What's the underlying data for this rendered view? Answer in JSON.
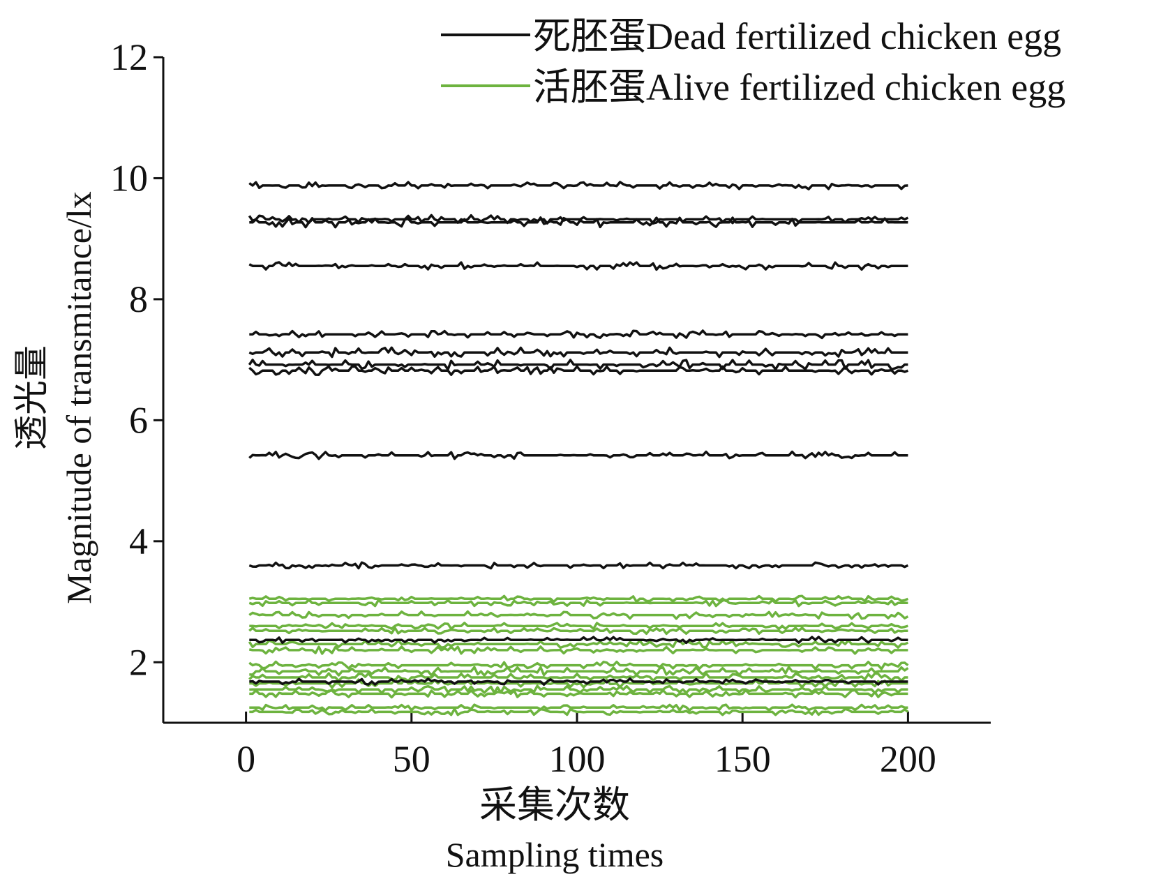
{
  "chart_data": {
    "type": "line",
    "title": "",
    "xlabel_zh": "采集次数",
    "xlabel": "Sampling times",
    "ylabel_zh": "透光量",
    "ylabel": "Magnitude of transmitance/lx",
    "xlim": [
      -25,
      225
    ],
    "ylim": [
      1,
      12
    ],
    "x_ticks": [
      0,
      50,
      100,
      150,
      200
    ],
    "y_ticks": [
      2,
      4,
      6,
      8,
      10,
      12
    ],
    "x_tick_labels": [
      "0",
      "50",
      "100",
      "150",
      "200"
    ],
    "y_tick_labels": [
      "2",
      "4",
      "6",
      "8",
      "10",
      "12"
    ],
    "x_range": [
      1,
      200
    ],
    "grid": false,
    "legend_position": "top-right",
    "legend": [
      {
        "label": "死胚蛋Dead fertilized chicken egg",
        "color": "#111111"
      },
      {
        "label": "活胚蛋Alive fertilized chicken egg",
        "color": "#6db33f"
      }
    ],
    "series": [
      {
        "group": "dead",
        "color": "#111111",
        "level": 9.88,
        "noise": 0.06
      },
      {
        "group": "dead",
        "color": "#111111",
        "level": 9.32,
        "noise": 0.07
      },
      {
        "group": "dead",
        "color": "#111111",
        "level": 9.27,
        "noise": 0.08
      },
      {
        "group": "dead",
        "color": "#111111",
        "level": 8.55,
        "noise": 0.06
      },
      {
        "group": "dead",
        "color": "#111111",
        "level": 7.42,
        "noise": 0.06
      },
      {
        "group": "dead",
        "color": "#111111",
        "level": 7.12,
        "noise": 0.08
      },
      {
        "group": "dead",
        "color": "#111111",
        "level": 6.92,
        "noise": 0.08
      },
      {
        "group": "dead",
        "color": "#111111",
        "level": 6.82,
        "noise": 0.07
      },
      {
        "group": "dead",
        "color": "#111111",
        "level": 5.42,
        "noise": 0.06
      },
      {
        "group": "dead",
        "color": "#111111",
        "level": 3.6,
        "noise": 0.05
      },
      {
        "group": "dead",
        "color": "#111111",
        "level": 2.37,
        "noise": 0.05
      },
      {
        "group": "dead",
        "color": "#111111",
        "level": 1.68,
        "noise": 0.05
      },
      {
        "group": "alive",
        "color": "#6db33f",
        "level": 3.05,
        "noise": 0.05
      },
      {
        "group": "alive",
        "color": "#6db33f",
        "level": 2.98,
        "noise": 0.05
      },
      {
        "group": "alive",
        "color": "#6db33f",
        "level": 2.78,
        "noise": 0.06
      },
      {
        "group": "alive",
        "color": "#6db33f",
        "level": 2.6,
        "noise": 0.05
      },
      {
        "group": "alive",
        "color": "#6db33f",
        "level": 2.52,
        "noise": 0.05
      },
      {
        "group": "alive",
        "color": "#6db33f",
        "level": 2.3,
        "noise": 0.06
      },
      {
        "group": "alive",
        "color": "#6db33f",
        "level": 2.2,
        "noise": 0.06
      },
      {
        "group": "alive",
        "color": "#6db33f",
        "level": 1.95,
        "noise": 0.06
      },
      {
        "group": "alive",
        "color": "#6db33f",
        "level": 1.85,
        "noise": 0.07
      },
      {
        "group": "alive",
        "color": "#6db33f",
        "level": 1.75,
        "noise": 0.07
      },
      {
        "group": "alive",
        "color": "#6db33f",
        "level": 1.65,
        "noise": 0.07
      },
      {
        "group": "alive",
        "color": "#6db33f",
        "level": 1.55,
        "noise": 0.06
      },
      {
        "group": "alive",
        "color": "#6db33f",
        "level": 1.48,
        "noise": 0.06
      },
      {
        "group": "alive",
        "color": "#6db33f",
        "level": 1.25,
        "noise": 0.05
      },
      {
        "group": "alive",
        "color": "#6db33f",
        "level": 1.18,
        "noise": 0.05
      }
    ]
  }
}
